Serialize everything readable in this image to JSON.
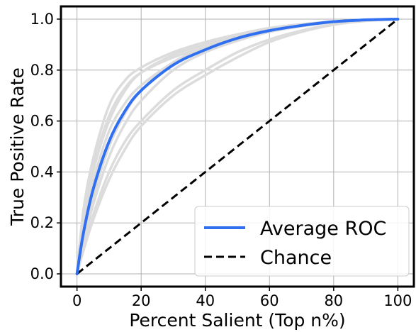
{
  "chart_data": {
    "type": "line",
    "xlabel": "Percent Salient (Top n%)",
    "ylabel": "True Positive Rate",
    "xlim": [
      -5,
      105
    ],
    "ylim": [
      -0.05,
      1.05
    ],
    "xticks": [
      0,
      20,
      40,
      60,
      80,
      100
    ],
    "yticks": [
      0.0,
      0.2,
      0.4,
      0.6,
      0.8,
      1.0
    ],
    "grid": true,
    "legend_position": "lower-right",
    "colors": {
      "average": "#2f6ff0",
      "chance": "#000000",
      "individual": "#dcdcdc"
    },
    "series": [
      {
        "name": "Average ROC",
        "style": "solid",
        "x": [
          0,
          2,
          5,
          10,
          15,
          20,
          30,
          40,
          50,
          60,
          70,
          80,
          90,
          100
        ],
        "y": [
          0.0,
          0.16,
          0.33,
          0.52,
          0.64,
          0.72,
          0.82,
          0.88,
          0.925,
          0.955,
          0.975,
          0.99,
          0.997,
          1.0
        ]
      },
      {
        "name": "Chance",
        "style": "dashed",
        "x": [
          0,
          100
        ],
        "y": [
          0.0,
          1.0
        ]
      }
    ],
    "individual_curves": [
      {
        "x": [
          0,
          2,
          5,
          10,
          15,
          20,
          30,
          40,
          50,
          60,
          70,
          80,
          90,
          100
        ],
        "y": [
          0.0,
          0.25,
          0.45,
          0.66,
          0.76,
          0.81,
          0.87,
          0.91,
          0.94,
          0.965,
          0.98,
          0.99,
          0.997,
          1.0
        ]
      },
      {
        "x": [
          0,
          2,
          5,
          10,
          15,
          20,
          30,
          40,
          50,
          60,
          70,
          80,
          90,
          100
        ],
        "y": [
          0.0,
          0.2,
          0.4,
          0.6,
          0.72,
          0.79,
          0.86,
          0.9,
          0.935,
          0.96,
          0.978,
          0.99,
          0.997,
          1.0
        ]
      },
      {
        "x": [
          0,
          2,
          5,
          10,
          15,
          20,
          30,
          40,
          50,
          60,
          70,
          80,
          90,
          100
        ],
        "y": [
          0.0,
          0.14,
          0.3,
          0.5,
          0.63,
          0.72,
          0.83,
          0.89,
          0.93,
          0.958,
          0.976,
          0.99,
          0.997,
          1.0
        ]
      },
      {
        "x": [
          0,
          2,
          5,
          10,
          15,
          20,
          30,
          40,
          50,
          60,
          70,
          80,
          90,
          100
        ],
        "y": [
          0.0,
          0.12,
          0.27,
          0.46,
          0.59,
          0.68,
          0.8,
          0.87,
          0.915,
          0.95,
          0.972,
          0.988,
          0.996,
          1.0
        ]
      },
      {
        "x": [
          0,
          2,
          5,
          10,
          15,
          20,
          30,
          40,
          50,
          60,
          70,
          80,
          90,
          100
        ],
        "y": [
          0.0,
          0.1,
          0.23,
          0.4,
          0.52,
          0.6,
          0.72,
          0.8,
          0.87,
          0.92,
          0.955,
          0.98,
          0.994,
          1.0
        ]
      },
      {
        "x": [
          0,
          2,
          5,
          10,
          15,
          20,
          30,
          40,
          50,
          60,
          70,
          80,
          90,
          100
        ],
        "y": [
          0.0,
          0.09,
          0.21,
          0.37,
          0.49,
          0.58,
          0.7,
          0.78,
          0.85,
          0.91,
          0.95,
          0.978,
          0.993,
          1.0
        ]
      },
      {
        "x": [
          0,
          2,
          5,
          10,
          15,
          20,
          30,
          40,
          50,
          60,
          70,
          80,
          90,
          100
        ],
        "y": [
          0.0,
          0.18,
          0.36,
          0.56,
          0.67,
          0.74,
          0.83,
          0.89,
          0.93,
          0.958,
          0.977,
          0.99,
          0.997,
          1.0
        ]
      },
      {
        "x": [
          0,
          2,
          5,
          10,
          15,
          20,
          30,
          40,
          50,
          60,
          70,
          80,
          90,
          100
        ],
        "y": [
          0.0,
          0.22,
          0.42,
          0.62,
          0.73,
          0.79,
          0.85,
          0.89,
          0.925,
          0.955,
          0.975,
          0.989,
          0.997,
          1.0
        ]
      }
    ]
  }
}
